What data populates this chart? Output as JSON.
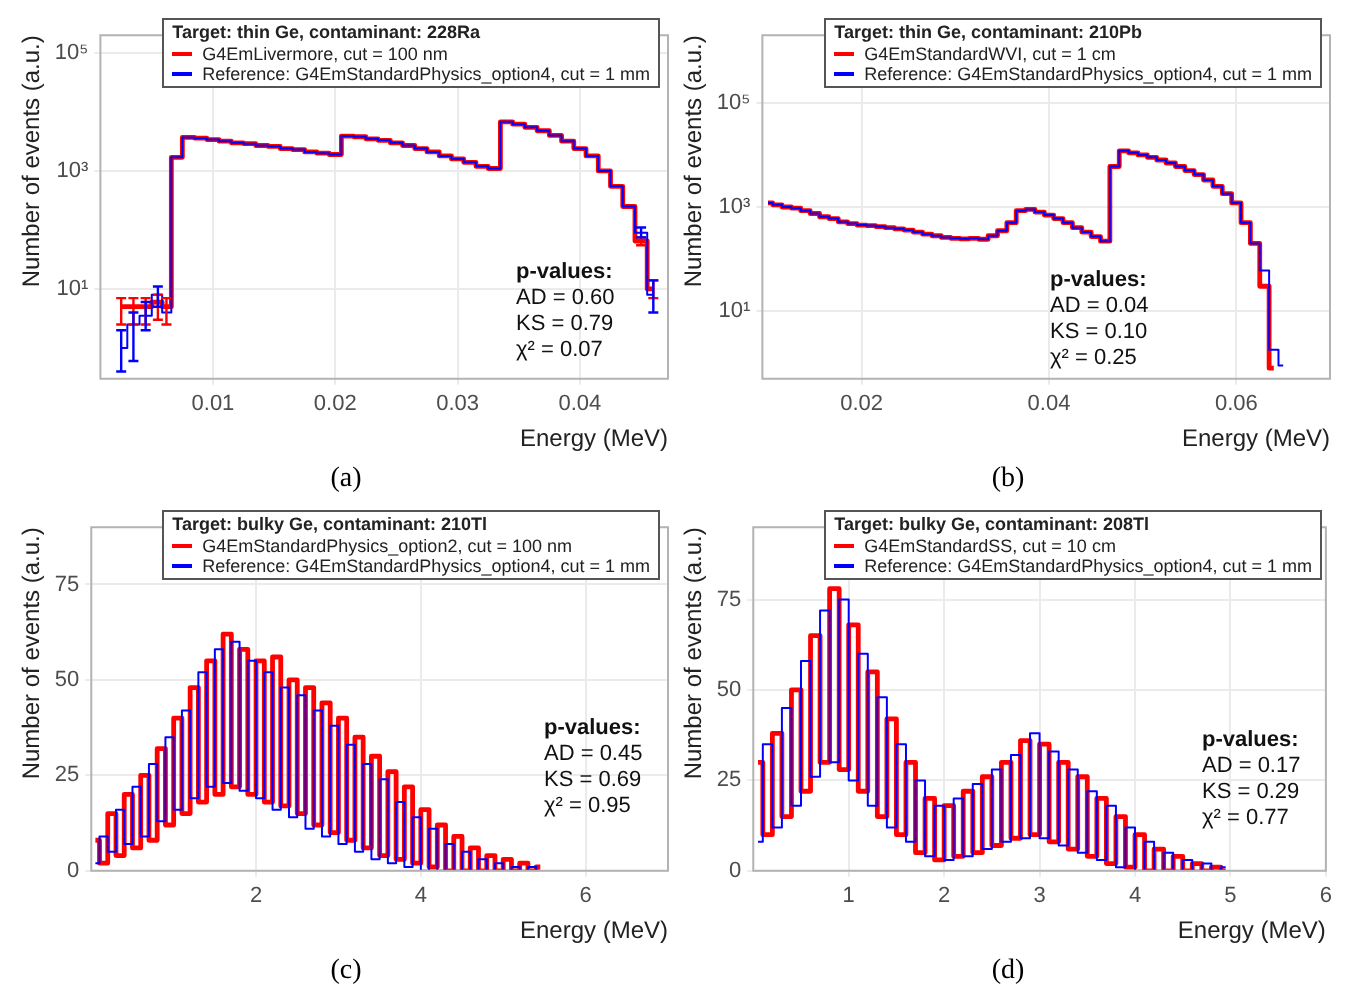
{
  "chart_data": [
    {
      "type": "step",
      "legend_title": "Target: thin Ge, contaminant: 228Ra",
      "xlabel": "Energy (MeV)",
      "ylabel": "Number of events (a.u.)",
      "log": "y",
      "grid": true,
      "legend": "top right",
      "xlim": [
        0.0008,
        0.0472
      ],
      "xticks": [
        0.01,
        0.02,
        0.03,
        0.04
      ],
      "ylim": [
        0.3,
        200000
      ],
      "yticks": [
        {
          "value": 10,
          "label": "10¹"
        },
        {
          "value": 1000,
          "label": "10³"
        },
        {
          "value": 100000,
          "label": "10⁵"
        }
      ],
      "x": [
        0.0025,
        0.0035,
        0.0045,
        0.0055,
        0.0062,
        0.007,
        0.008,
        0.009,
        0.01,
        0.011,
        0.012,
        0.013,
        0.014,
        0.015,
        0.016,
        0.017,
        0.018,
        0.019,
        0.02,
        0.021,
        0.022,
        0.023,
        0.024,
        0.025,
        0.026,
        0.027,
        0.028,
        0.029,
        0.03,
        0.031,
        0.032,
        0.033,
        0.034,
        0.035,
        0.036,
        0.037,
        0.038,
        0.039,
        0.04,
        0.041,
        0.042,
        0.043,
        0.044,
        0.045,
        0.046
      ],
      "series": [
        {
          "name": "G4EmLivermore, cut = 100 nm",
          "color": "#ff0000",
          "values": [
            5,
            5,
            5,
            6,
            5,
            1700,
            3700,
            3600,
            3400,
            3200,
            3000,
            2900,
            2700,
            2600,
            2400,
            2300,
            2100,
            2000,
            1900,
            3900,
            3800,
            3500,
            3300,
            3000,
            2700,
            2400,
            2100,
            1800,
            1600,
            1400,
            1200,
            1100,
            6800,
            6200,
            5500,
            4800,
            4000,
            3200,
            2400,
            1800,
            1000,
            550,
            250,
            65,
            10
          ],
          "errors": [
            [
              2.5,
              7
            ],
            [
              2.5,
              7
            ],
            [
              2.5,
              7
            ],
            [
              3,
              8
            ],
            [
              2.5,
              7
            ],
            null,
            null,
            null,
            null,
            null,
            null,
            null,
            null,
            null,
            null,
            null,
            null,
            null,
            null,
            null,
            null,
            null,
            null,
            null,
            null,
            null,
            null,
            null,
            null,
            null,
            null,
            null,
            null,
            null,
            null,
            null,
            null,
            null,
            null,
            null,
            null,
            null,
            null,
            [
              55,
              75
            ],
            [
              7,
              14
            ]
          ]
        },
        {
          "name": "Reference: G4EmStandardPhysics_option4, cut = 1 mm",
          "color": "#0000ff",
          "values": [
            1,
            2.5,
            3.5,
            8,
            4,
            1700,
            3700,
            3600,
            3400,
            3200,
            3000,
            2900,
            2700,
            2600,
            2400,
            2300,
            2100,
            2000,
            1900,
            3900,
            3800,
            3500,
            3300,
            3000,
            2700,
            2400,
            2100,
            1800,
            1600,
            1400,
            1200,
            1100,
            6800,
            6200,
            5500,
            4800,
            4000,
            3200,
            2400,
            1800,
            1000,
            550,
            250,
            90,
            8
          ],
          "errors": [
            [
              0.4,
              2
            ],
            [
              0.6,
              4
            ],
            [
              2,
              6
            ],
            [
              5,
              11
            ],
            null,
            null,
            null,
            null,
            null,
            null,
            null,
            null,
            null,
            null,
            null,
            null,
            null,
            null,
            null,
            null,
            null,
            null,
            null,
            null,
            null,
            null,
            null,
            null,
            null,
            null,
            null,
            null,
            null,
            null,
            null,
            null,
            null,
            null,
            null,
            null,
            null,
            null,
            null,
            [
              75,
              110
            ],
            [
              4,
              14
            ]
          ]
        }
      ],
      "annotations": [
        "p-values:",
        "AD = 0.60",
        "KS = 0.79",
        "χ² = 0.07",
        "(a)"
      ]
    },
    {
      "type": "step",
      "legend_title": "Target: thin Ge, contaminant: 210Pb",
      "xlabel": "Energy (MeV)",
      "ylabel": "Number of events (a.u.)",
      "log": "y",
      "grid": true,
      "legend": "top right",
      "xlim": [
        0.0094,
        0.07
      ],
      "xticks": [
        0.02,
        0.04,
        0.06
      ],
      "ylim": [
        0.5,
        2000000
      ],
      "yticks": [
        {
          "value": 10,
          "label": "10¹"
        },
        {
          "value": 1000,
          "label": "10³"
        },
        {
          "value": 100000,
          "label": "10⁵"
        }
      ],
      "x": [
        0.01,
        0.011,
        0.012,
        0.013,
        0.014,
        0.015,
        0.016,
        0.017,
        0.018,
        0.019,
        0.02,
        0.021,
        0.022,
        0.023,
        0.024,
        0.025,
        0.026,
        0.027,
        0.028,
        0.029,
        0.03,
        0.031,
        0.032,
        0.033,
        0.034,
        0.035,
        0.036,
        0.037,
        0.038,
        0.039,
        0.04,
        0.041,
        0.042,
        0.043,
        0.044,
        0.045,
        0.046,
        0.047,
        0.048,
        0.049,
        0.05,
        0.051,
        0.052,
        0.053,
        0.054,
        0.055,
        0.056,
        0.057,
        0.058,
        0.059,
        0.06,
        0.061,
        0.062,
        0.063,
        0.064,
        0.065
      ],
      "series": [
        {
          "name": "G4EmStandardWVI, cut = 1 cm",
          "color": "#ff0000",
          "values": [
            1200,
            1100,
            1000,
            950,
            850,
            750,
            650,
            600,
            520,
            480,
            450,
            440,
            420,
            400,
            380,
            360,
            330,
            300,
            280,
            260,
            250,
            245,
            250,
            240,
            280,
            350,
            500,
            850,
            900,
            800,
            700,
            600,
            500,
            400,
            330,
            270,
            220,
            6000,
            12000,
            11000,
            10000,
            9000,
            8000,
            7000,
            6000,
            5000,
            4200,
            3300,
            2500,
            1800,
            1200,
            500,
            200,
            30,
            0.8,
            null
          ]
        },
        {
          "name": "Reference: G4EmStandardPhysics_option4, cut = 1 mm",
          "color": "#0000ff",
          "values": [
            1200,
            1100,
            1000,
            950,
            850,
            750,
            650,
            600,
            520,
            480,
            450,
            440,
            420,
            400,
            380,
            360,
            330,
            300,
            280,
            260,
            250,
            245,
            250,
            240,
            280,
            350,
            500,
            850,
            900,
            800,
            700,
            600,
            500,
            400,
            330,
            270,
            220,
            6000,
            12000,
            11000,
            10000,
            9000,
            8000,
            7000,
            6000,
            5000,
            4200,
            3300,
            2500,
            1800,
            1200,
            500,
            200,
            60,
            1.8,
            0.9
          ]
        }
      ],
      "annotations": [
        "p-values:",
        "AD = 0.04",
        "KS = 0.10",
        "χ² = 0.25",
        "(b)"
      ]
    },
    {
      "type": "step",
      "legend_title": "Target: bulky Ge, contaminant: 210Tl",
      "xlabel": "Energy (MeV)",
      "ylabel": "Number of events (a.u.)",
      "grid": true,
      "legend": "top right",
      "xlim": [
        0,
        7
      ],
      "xticks": [
        2,
        4,
        6
      ],
      "ylim": [
        0,
        90
      ],
      "yticks": [
        0,
        25,
        50,
        75
      ],
      "x": [
        0.05,
        0.15,
        0.25,
        0.35,
        0.45,
        0.55,
        0.65,
        0.75,
        0.85,
        0.95,
        1.05,
        1.15,
        1.25,
        1.35,
        1.45,
        1.55,
        1.65,
        1.75,
        1.85,
        1.95,
        2.05,
        2.15,
        2.25,
        2.35,
        2.45,
        2.55,
        2.65,
        2.75,
        2.85,
        2.95,
        3.05,
        3.15,
        3.25,
        3.35,
        3.45,
        3.55,
        3.65,
        3.75,
        3.85,
        3.95,
        4.05,
        4.15,
        4.25,
        4.35,
        4.45,
        4.55,
        4.65,
        4.75,
        4.85,
        4.95,
        5.05,
        5.15,
        5.25,
        5.35,
        5.45
      ],
      "series": [
        {
          "name": "G4EmStandardPhysics_option2, cut = 100 nm",
          "color": "#ff0000",
          "values": [
            8,
            2,
            15,
            4,
            20,
            6,
            25,
            8,
            32,
            12,
            40,
            15,
            48,
            18,
            55,
            20,
            62,
            22,
            58,
            20,
            55,
            18,
            56,
            17,
            50,
            15,
            48,
            12,
            44,
            10,
            40,
            8,
            35,
            6,
            30,
            4,
            26,
            3,
            22,
            2,
            16,
            1,
            12,
            0,
            9,
            0,
            6,
            0,
            4,
            0,
            3,
            0,
            2,
            0,
            1
          ]
        },
        {
          "name": "Reference: G4EmStandardPhysics_option4, cut = 1 mm",
          "color": "#0000ff",
          "values": [
            2,
            9,
            5,
            16,
            7,
            22,
            9,
            28,
            13,
            35,
            16,
            42,
            19,
            52,
            22,
            58,
            23,
            60,
            21,
            55,
            19,
            52,
            16,
            48,
            14,
            46,
            11,
            42,
            9,
            38,
            7,
            33,
            5,
            28,
            3,
            24,
            2,
            18,
            1,
            14,
            0,
            11,
            0,
            7,
            0,
            5,
            0,
            3,
            0,
            2,
            0,
            1,
            0,
            1,
            0
          ]
        }
      ],
      "annotations": [
        "p-values:",
        "AD = 0.45",
        "KS = 0.69",
        "χ² = 0.95",
        "(c)"
      ]
    },
    {
      "type": "step",
      "legend_title": "Target: bulky Ge, contaminant: 208Tl",
      "xlabel": "Energy (MeV)",
      "ylabel": "Number of events (a.u.)",
      "grid": true,
      "legend": "top right",
      "xlim": [
        0,
        6
      ],
      "xticks": [
        1,
        2,
        3,
        4,
        5,
        6
      ],
      "ylim": [
        0,
        95
      ],
      "yticks": [
        0,
        25,
        50,
        75
      ],
      "x": [
        0.05,
        0.15,
        0.25,
        0.35,
        0.45,
        0.55,
        0.65,
        0.75,
        0.85,
        0.95,
        1.05,
        1.15,
        1.25,
        1.35,
        1.45,
        1.55,
        1.65,
        1.75,
        1.85,
        1.95,
        2.05,
        2.15,
        2.25,
        2.35,
        2.45,
        2.55,
        2.65,
        2.75,
        2.85,
        2.95,
        3.05,
        3.15,
        3.25,
        3.35,
        3.45,
        3.55,
        3.65,
        3.75,
        3.85,
        3.95,
        4.05,
        4.15,
        4.25,
        4.35,
        4.45,
        4.55,
        4.65,
        4.75,
        4.85,
        4.95
      ],
      "series": [
        {
          "name": "G4EmStandardSS, cut = 10 cm",
          "color": "#ff0000",
          "values": [
            30,
            10,
            38,
            15,
            50,
            22,
            65,
            30,
            78,
            28,
            68,
            22,
            55,
            15,
            42,
            10,
            30,
            5,
            20,
            3,
            18,
            4,
            22,
            5,
            26,
            7,
            30,
            9,
            36,
            10,
            35,
            8,
            30,
            6,
            26,
            4,
            20,
            2,
            15,
            1,
            10,
            0,
            6,
            0,
            4,
            0,
            2,
            0,
            1,
            0
          ]
        },
        {
          "name": "Reference: G4EmStandardPhysics_option4, cut = 1 mm",
          "color": "#0000ff",
          "values": [
            8,
            35,
            12,
            45,
            18,
            58,
            26,
            72,
            30,
            75,
            25,
            60,
            18,
            48,
            12,
            35,
            8,
            25,
            4,
            18,
            3,
            20,
            4,
            24,
            6,
            28,
            8,
            32,
            9,
            38,
            9,
            33,
            7,
            28,
            5,
            22,
            3,
            18,
            1,
            12,
            0,
            8,
            0,
            5,
            0,
            3,
            0,
            2,
            0,
            1
          ]
        }
      ],
      "annotations": [
        "p-values:",
        "AD = 0.17",
        "KS = 0.29",
        "χ² = 0.77",
        "(d)"
      ]
    }
  ]
}
